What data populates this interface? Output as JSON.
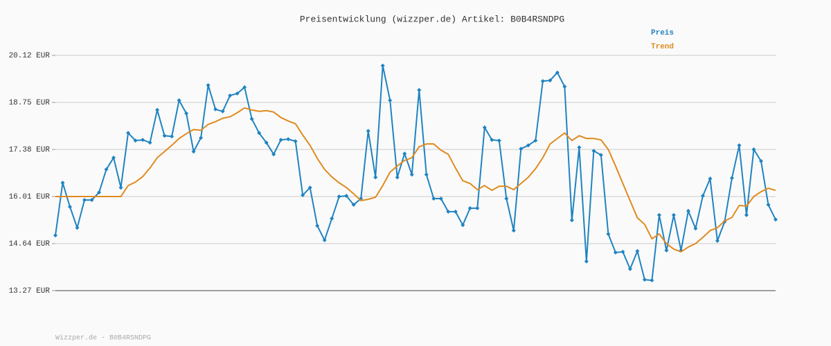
{
  "chart_data": {
    "type": "line",
    "title": "Preisentwicklung (wizzper.de) Artikel: B0B4RSNDPG",
    "footer": "Wizzper.de - B0B4RSNDPG",
    "ylim": [
      13.27,
      20.12
    ],
    "yticks": [
      {
        "value": 13.27,
        "label": "13.27 EUR"
      },
      {
        "value": 14.64,
        "label": "14.64 EUR"
      },
      {
        "value": 16.01,
        "label": "16.01 EUR"
      },
      {
        "value": 17.38,
        "label": "17.38 EUR"
      },
      {
        "value": 18.75,
        "label": "18.75 EUR"
      },
      {
        "value": 20.12,
        "label": "20.12 EUR"
      }
    ],
    "grid": true,
    "legend": "top-right",
    "series": [
      {
        "name": "Preis",
        "color": "#1f83c1",
        "markers": true,
        "values": [
          14.88,
          16.41,
          15.71,
          15.1,
          15.91,
          15.91,
          16.13,
          16.8,
          17.14,
          16.27,
          17.86,
          17.64,
          17.66,
          17.58,
          18.53,
          17.78,
          17.76,
          18.81,
          18.43,
          17.32,
          17.72,
          19.25,
          18.55,
          18.49,
          18.95,
          19.01,
          19.19,
          18.27,
          17.86,
          17.58,
          17.24,
          17.66,
          17.68,
          17.62,
          16.05,
          16.27,
          15.16,
          14.74,
          15.37,
          16.01,
          16.03,
          15.77,
          15.95,
          17.92,
          16.57,
          19.82,
          18.81,
          16.57,
          17.26,
          16.65,
          19.11,
          16.65,
          15.95,
          15.95,
          15.57,
          15.57,
          15.18,
          15.67,
          15.67,
          18.02,
          17.66,
          17.64,
          15.95,
          15.02,
          17.4,
          17.5,
          17.64,
          19.37,
          19.39,
          19.62,
          19.21,
          15.32,
          17.44,
          14.12,
          17.34,
          17.22,
          14.92,
          14.38,
          14.4,
          13.9,
          14.42,
          13.59,
          13.57,
          15.47,
          14.44,
          15.47,
          14.44,
          15.59,
          15.08,
          16.03,
          16.53,
          14.72,
          15.28,
          16.55,
          17.5,
          15.47,
          17.38,
          17.04,
          15.77,
          15.34
        ]
      },
      {
        "name": "Trend",
        "color": "#e08a1e",
        "markers": false,
        "values": [
          16.01,
          16.01,
          16.01,
          16.01,
          16.01,
          16.01,
          16.01,
          16.01,
          16.01,
          16.01,
          16.33,
          16.43,
          16.59,
          16.84,
          17.14,
          17.32,
          17.5,
          17.7,
          17.84,
          17.96,
          17.94,
          18.11,
          18.19,
          18.29,
          18.33,
          18.45,
          18.59,
          18.53,
          18.49,
          18.51,
          18.47,
          18.31,
          18.21,
          18.13,
          17.8,
          17.5,
          17.12,
          16.8,
          16.58,
          16.41,
          16.27,
          16.09,
          15.89,
          15.93,
          15.99,
          16.33,
          16.72,
          16.9,
          17.06,
          17.14,
          17.46,
          17.54,
          17.54,
          17.36,
          17.24,
          16.84,
          16.47,
          16.39,
          16.21,
          16.33,
          16.19,
          16.31,
          16.31,
          16.21,
          16.39,
          16.57,
          16.82,
          17.14,
          17.54,
          17.7,
          17.86,
          17.64,
          17.78,
          17.7,
          17.7,
          17.66,
          17.38,
          16.9,
          16.39,
          15.89,
          15.39,
          15.2,
          14.78,
          14.92,
          14.64,
          14.48,
          14.4,
          14.54,
          14.64,
          14.82,
          15.02,
          15.1,
          15.3,
          15.4,
          15.75,
          15.73,
          16.01,
          16.15,
          16.25,
          16.19
        ]
      }
    ]
  }
}
